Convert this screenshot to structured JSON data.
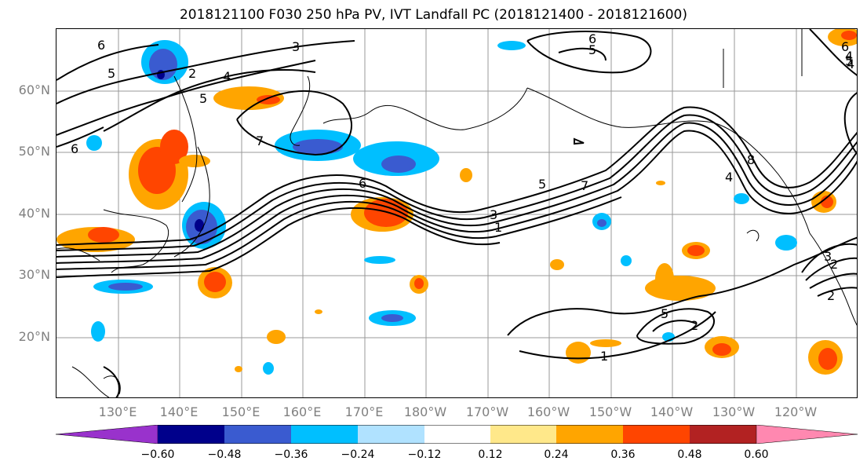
{
  "title": "2018121100 F030 250 hPa PV, IVT Landfall PC (2018121400 - 2018121600)",
  "latitude_labels": [
    "60°N",
    "50°N",
    "40°N",
    "30°N",
    "20°N"
  ],
  "longitude_labels": [
    "130°E",
    "140°E",
    "150°E",
    "160°E",
    "170°E",
    "180°W",
    "170°W",
    "160°W",
    "150°W",
    "140°W",
    "130°W",
    "120°W"
  ],
  "contour_labels": [
    "6",
    "5",
    "3",
    "2",
    "4",
    "5",
    "7",
    "6",
    "6",
    "5",
    "6",
    "5",
    "4",
    "6",
    "8",
    "4",
    "7",
    "5",
    "3",
    "1",
    "5",
    "2",
    "1",
    "2",
    "3",
    "2",
    "4"
  ],
  "colorbar": {
    "colors": [
      "#9932cc",
      "#00008b",
      "#3a5bd0",
      "#00bfff",
      "#b0e2ff",
      "#ffffff",
      "#ffe88a",
      "#ffa500",
      "#ff4500",
      "#b22222",
      "#ff88b0"
    ],
    "tick_labels": [
      "−0.60",
      "−0.48",
      "−0.36",
      "−0.24",
      "−0.12",
      "0.12",
      "0.24",
      "0.36",
      "0.48",
      "0.60"
    ]
  }
}
